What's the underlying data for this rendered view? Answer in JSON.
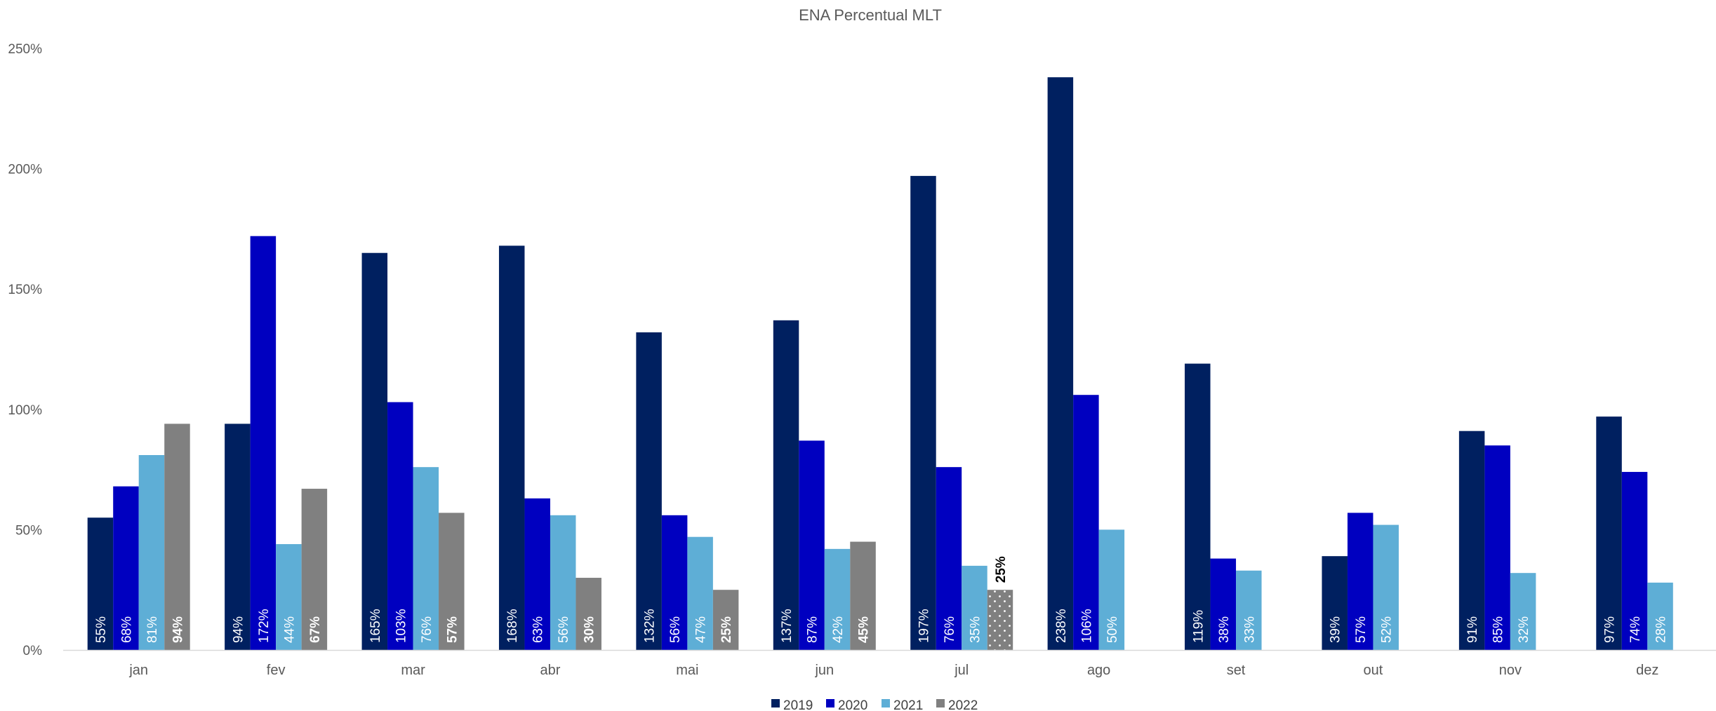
{
  "chart_data": {
    "type": "bar",
    "title": "ENA Percentual MLT",
    "xlabel": "",
    "ylabel": "",
    "ylim": [
      0,
      250
    ],
    "y_ticks": [
      0,
      50,
      100,
      150,
      200,
      250
    ],
    "y_tick_labels": [
      "0%",
      "50%",
      "100%",
      "150%",
      "200%",
      "250%"
    ],
    "grid": false,
    "legend_position": "bottom",
    "categories": [
      "jan",
      "fev",
      "mar",
      "abr",
      "mai",
      "jun",
      "jul",
      "ago",
      "set",
      "out",
      "nov",
      "dez"
    ],
    "series": [
      {
        "name": "2019",
        "color": "#002060",
        "values": [
          55,
          94,
          165,
          168,
          132,
          137,
          197,
          238,
          119,
          39,
          91,
          97
        ],
        "labels": [
          "55%",
          "94%",
          "165%",
          "168%",
          "132%",
          "137%",
          "197%",
          "238%",
          "119%",
          "39%",
          "91%",
          "97%"
        ]
      },
      {
        "name": "2020",
        "color": "#0000C0",
        "values": [
          68,
          172,
          103,
          63,
          56,
          87,
          76,
          106,
          38,
          57,
          85,
          74
        ],
        "labels": [
          "68%",
          "172%",
          "103%",
          "63%",
          "56%",
          "87%",
          "76%",
          "106%",
          "38%",
          "57%",
          "85%",
          "74%"
        ]
      },
      {
        "name": "2021",
        "color": "#5EAED6",
        "values": [
          81,
          44,
          76,
          56,
          47,
          42,
          35,
          50,
          33,
          52,
          32,
          28
        ],
        "labels": [
          "81%",
          "44%",
          "76%",
          "56%",
          "47%",
          "42%",
          "35%",
          "50%",
          "33%",
          "52%",
          "32%",
          "28%"
        ]
      },
      {
        "name": "2022",
        "color": "#808080",
        "values": [
          94,
          67,
          57,
          30,
          25,
          45,
          25,
          null,
          null,
          null,
          null,
          null
        ],
        "labels": [
          "94%",
          "67%",
          "57%",
          "30%",
          "25%",
          "45%",
          "25%",
          null,
          null,
          null,
          null,
          null
        ]
      }
    ],
    "patterned_bar": {
      "series": "2022",
      "category": "jul",
      "pattern": "dotted"
    }
  }
}
